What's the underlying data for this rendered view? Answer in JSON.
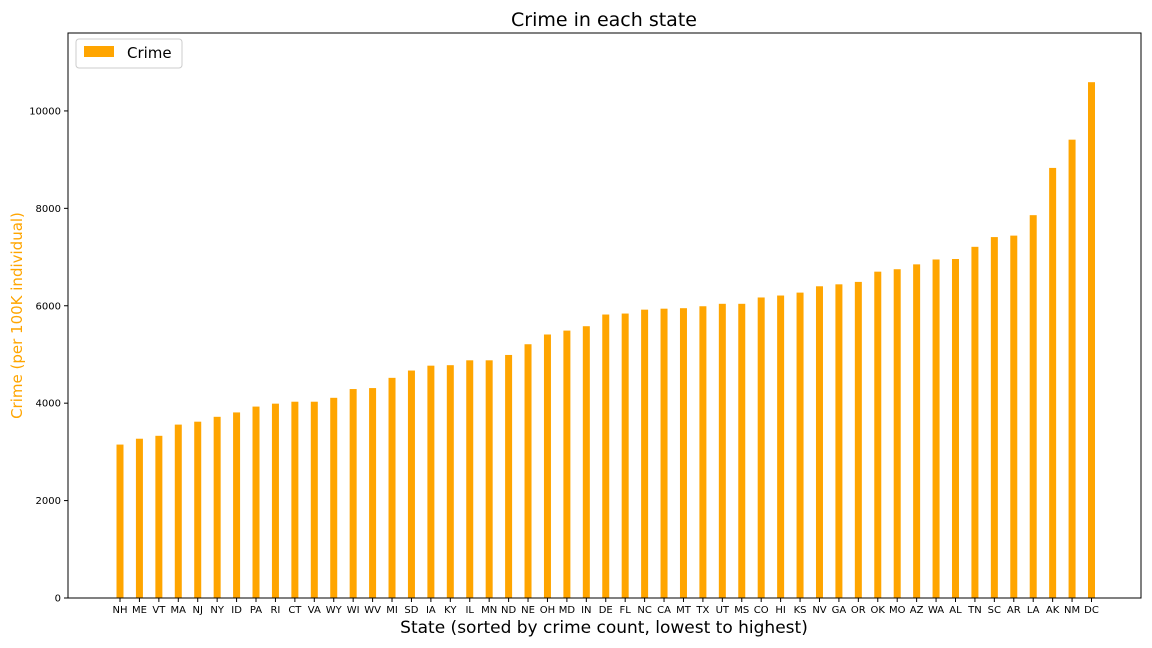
{
  "chart_data": {
    "type": "bar",
    "title": "Crime in each state",
    "xlabel": "State (sorted by crime count, lowest to highest)",
    "ylabel": "Crime (per 100K individual)",
    "ylim": [
      0,
      11600
    ],
    "yticks": [
      0,
      2000,
      4000,
      6000,
      8000,
      10000
    ],
    "bar_color": "#FFA500",
    "ylabel_color": "#FFA500",
    "legend": {
      "label": "Crime",
      "placement": "upper-left"
    },
    "categories": [
      "NH",
      "ME",
      "VT",
      "MA",
      "NJ",
      "NY",
      "ID",
      "PA",
      "RI",
      "CT",
      "VA",
      "WY",
      "WI",
      "WV",
      "MI",
      "SD",
      "IA",
      "KY",
      "IL",
      "MN",
      "ND",
      "NE",
      "OH",
      "MD",
      "IN",
      "DE",
      "FL",
      "NC",
      "CA",
      "MT",
      "TX",
      "UT",
      "MS",
      "CO",
      "HI",
      "KS",
      "NV",
      "GA",
      "OR",
      "OK",
      "MO",
      "AZ",
      "WA",
      "AL",
      "TN",
      "SC",
      "AR",
      "LA",
      "AK",
      "NM",
      "DC"
    ],
    "series": [
      {
        "name": "Crime",
        "values": [
          3150,
          3270,
          3330,
          3560,
          3620,
          3720,
          3810,
          3930,
          3990,
          4030,
          4030,
          4110,
          4290,
          4310,
          4520,
          4670,
          4770,
          4780,
          4880,
          4880,
          4990,
          5210,
          5410,
          5490,
          5580,
          5820,
          5840,
          5920,
          5940,
          5950,
          5990,
          6040,
          6040,
          6170,
          6210,
          6270,
          6400,
          6440,
          6490,
          6700,
          6750,
          6850,
          6950,
          6960,
          7210,
          7410,
          7440,
          7860,
          8830,
          9410,
          10590
        ]
      }
    ]
  }
}
